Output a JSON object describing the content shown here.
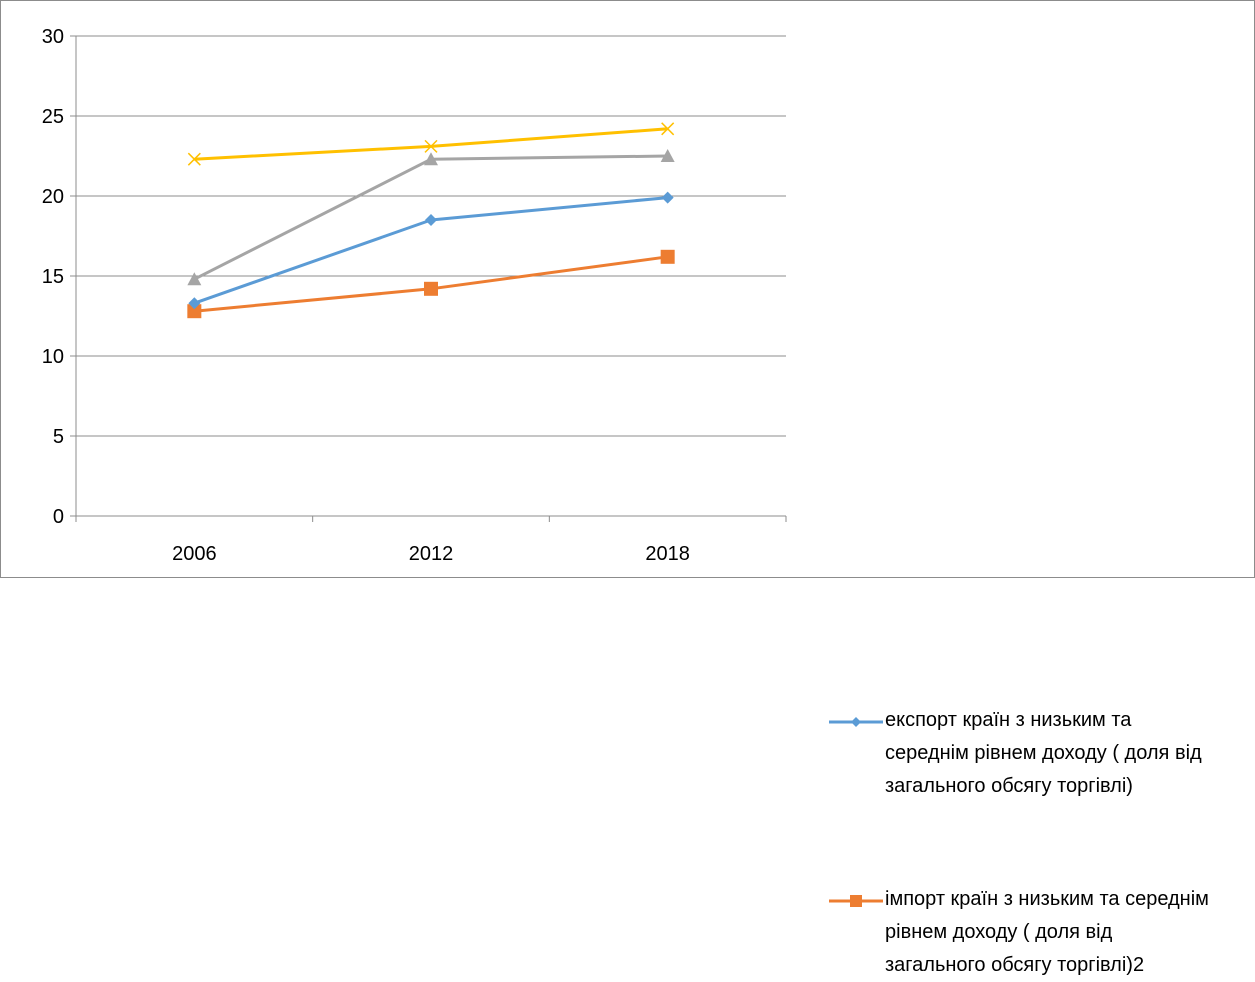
{
  "chart_data": {
    "type": "line",
    "title": "",
    "xlabel": "",
    "ylabel": "",
    "categories": [
      "2006",
      "2012",
      "2018"
    ],
    "ylim": [
      0,
      30
    ],
    "yticks": [
      0,
      5,
      10,
      15,
      20,
      25,
      30
    ],
    "grid": "horizontal",
    "legend_position": "right",
    "series": [
      {
        "name": "експорт країн з низьким та середнім рівнем доходу ( доля від загального обсягу торгівлі)",
        "values": [
          13.3,
          18.5,
          19.9
        ],
        "color": "#5B9BD5",
        "marker": "diamond"
      },
      {
        "name": "імпорт країн з низьким та середнім рівнем доходу ( доля від загального обсягу торгівлі)2",
        "values": [
          12.8,
          14.2,
          16.2
        ],
        "color": "#ED7D31",
        "marker": "square"
      },
      {
        "values": [
          14.8,
          22.3,
          22.5
        ],
        "color": "#A5A5A5",
        "marker": "triangle"
      },
      {
        "values": [
          22.3,
          23.1,
          24.2
        ],
        "color": "#FFC000",
        "marker": "x"
      }
    ]
  }
}
